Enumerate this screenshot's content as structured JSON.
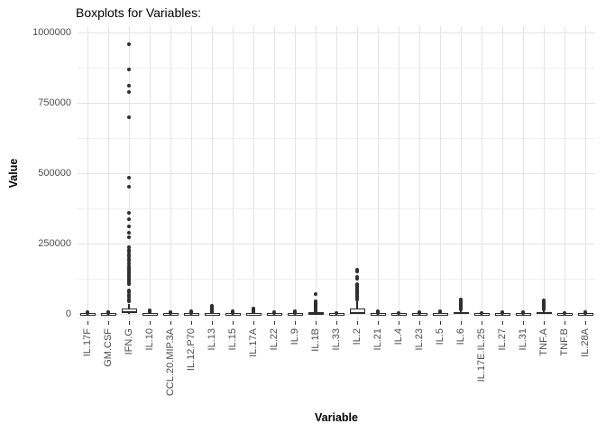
{
  "title": "Boxplots for Variables:",
  "axes": {
    "y_title": "Value",
    "x_title": "Variable"
  },
  "colors": {
    "background": "#ffffff",
    "box_stroke": "#2a2a2a",
    "box_fill": "#ffffff",
    "outlier": "#2f2f2f",
    "grid_major": "#e3e3e3",
    "grid_minor": "#f0f0f0",
    "tick_label": "#4d4d4d",
    "title_text": "#000000"
  },
  "chart_data": {
    "type": "boxplot",
    "title": "Boxplots for Variables:",
    "xlabel": "Variable",
    "ylabel": "Value",
    "ylim": [
      0,
      1000000
    ],
    "y_major_ticks": [
      0,
      250000,
      500000,
      750000,
      1000000
    ],
    "y_tick_labels": [
      "0",
      "250000",
      "500000",
      "750000",
      "1000000"
    ],
    "y_minor_ticks": [
      125000,
      375000,
      625000,
      875000
    ],
    "grid": "major+minor horizontal, major vertical per category",
    "legend": "none",
    "categories": [
      "IL.17F",
      "GM.CSF",
      "IFN.G",
      "IL.10",
      "CCL.20.MIP.3A",
      "IL.12.P70",
      "IL.13",
      "IL.15",
      "IL.17A",
      "IL.22",
      "IL.9",
      "IL.1B",
      "IL.33",
      "IL.2",
      "IL.21",
      "IL.4",
      "IL.23",
      "IL.5",
      "IL.6",
      "IL.17E.IL.25",
      "IL.27",
      "IL.31",
      "TNF.A",
      "TNF.B",
      "IL.28A"
    ],
    "boxes": [
      {
        "name": "IL.17F",
        "whisker_low": 0,
        "q1": 0,
        "median": 1000,
        "q3": 2600,
        "whisker_high": 5000,
        "outliers": [
          5000
        ]
      },
      {
        "name": "GM.CSF",
        "whisker_low": 0,
        "q1": 0,
        "median": 1000,
        "q3": 2600,
        "whisker_high": 5000,
        "outliers": [
          5000,
          7000
        ]
      },
      {
        "name": "IFN.G",
        "whisker_low": 0,
        "q1": 2000,
        "median": 8000,
        "q3": 20000,
        "whisker_high": 36000,
        "outliers": [
          45000,
          52000,
          60000,
          68000,
          76000,
          83000,
          106000,
          113000,
          120000,
          127000,
          134000,
          141000,
          148000,
          155000,
          162000,
          170000,
          180000,
          188000,
          196000,
          204000,
          212000,
          220000,
          228000,
          236000,
          272000,
          288000,
          312000,
          336000,
          360000,
          452000,
          485000,
          700000,
          788000,
          812000,
          868000,
          958000
        ]
      },
      {
        "name": "IL.10",
        "whisker_low": 0,
        "q1": 0,
        "median": 1000,
        "q3": 2600,
        "whisker_high": 5000,
        "outliers": [
          7000,
          10000,
          14000
        ]
      },
      {
        "name": "CCL.20.MIP.3A",
        "whisker_low": 0,
        "q1": 0,
        "median": 1000,
        "q3": 2600,
        "whisker_high": 5000,
        "outliers": [
          5000
        ]
      },
      {
        "name": "IL.12.P70",
        "whisker_low": 0,
        "q1": 0,
        "median": 1000,
        "q3": 2600,
        "whisker_high": 5000,
        "outliers": [
          5000,
          8000
        ]
      },
      {
        "name": "IL.13",
        "whisker_low": 0,
        "q1": 0,
        "median": 1000,
        "q3": 2600,
        "whisker_high": 5000,
        "outliers": [
          7000,
          11000,
          15000,
          19000,
          24000,
          29000
        ]
      },
      {
        "name": "IL.15",
        "whisker_low": 0,
        "q1": 0,
        "median": 1000,
        "q3": 2600,
        "whisker_high": 5000,
        "outliers": [
          5000,
          8000
        ]
      },
      {
        "name": "IL.17A",
        "whisker_low": 0,
        "q1": 0,
        "median": 1000,
        "q3": 2600,
        "whisker_high": 5000,
        "outliers": [
          7000,
          11000,
          15000,
          19000
        ]
      },
      {
        "name": "IL.22",
        "whisker_low": 0,
        "q1": 0,
        "median": 1000,
        "q3": 2600,
        "whisker_high": 5000,
        "outliers": [
          5000
        ]
      },
      {
        "name": "IL.9",
        "whisker_low": 0,
        "q1": 0,
        "median": 1000,
        "q3": 2600,
        "whisker_high": 5000,
        "outliers": [
          5000,
          8000
        ]
      },
      {
        "name": "IL.1B",
        "whisker_low": 0,
        "q1": 500,
        "median": 2000,
        "q3": 5500,
        "whisker_high": 9000,
        "outliers": [
          11000,
          15000,
          19000,
          23000,
          27000,
          31000,
          35000,
          39000,
          43000,
          70000
        ]
      },
      {
        "name": "IL.33",
        "whisker_low": 0,
        "q1": 0,
        "median": 1000,
        "q3": 2600,
        "whisker_high": 5000,
        "outliers": [
          4000
        ]
      },
      {
        "name": "IL.2",
        "whisker_low": 0,
        "q1": 1000,
        "median": 4000,
        "q3": 19000,
        "whisker_high": 48000,
        "outliers": [
          52000,
          57000,
          62000,
          67000,
          72000,
          77000,
          82000,
          87000,
          92000,
          97000,
          102000,
          106000,
          126000,
          132000,
          150000,
          156000
        ]
      },
      {
        "name": "IL.21",
        "whisker_low": 0,
        "q1": 0,
        "median": 1000,
        "q3": 2600,
        "whisker_high": 5000,
        "outliers": [
          5000,
          9000
        ]
      },
      {
        "name": "IL.4",
        "whisker_low": 0,
        "q1": 0,
        "median": 1000,
        "q3": 2600,
        "whisker_high": 5000,
        "outliers": [
          4000
        ]
      },
      {
        "name": "IL.23",
        "whisker_low": 0,
        "q1": 0,
        "median": 1000,
        "q3": 2600,
        "whisker_high": 5000,
        "outliers": [
          4000,
          7000
        ]
      },
      {
        "name": "IL.5",
        "whisker_low": 0,
        "q1": 0,
        "median": 1200,
        "q3": 3000,
        "whisker_high": 6000,
        "outliers": [
          6000,
          10000
        ]
      },
      {
        "name": "IL.6",
        "whisker_low": 0,
        "q1": 500,
        "median": 2500,
        "q3": 7000,
        "whisker_high": 13000,
        "outliers": [
          17000,
          21000,
          25000,
          29000,
          33000,
          37000,
          42000,
          47000,
          51000
        ]
      },
      {
        "name": "IL.17E.IL.25",
        "whisker_low": 0,
        "q1": 0,
        "median": 1000,
        "q3": 2600,
        "whisker_high": 5000,
        "outliers": [
          4000
        ]
      },
      {
        "name": "IL.27",
        "whisker_low": 0,
        "q1": 0,
        "median": 1000,
        "q3": 2600,
        "whisker_high": 5000,
        "outliers": [
          4000,
          7000
        ]
      },
      {
        "name": "IL.31",
        "whisker_low": 0,
        "q1": 0,
        "median": 1000,
        "q3": 2600,
        "whisker_high": 5000,
        "outliers": [
          4000,
          7000
        ]
      },
      {
        "name": "TNF.A",
        "whisker_low": 0,
        "q1": 500,
        "median": 2500,
        "q3": 6500,
        "whisker_high": 12000,
        "outliers": [
          15000,
          19000,
          23000,
          27000,
          31000,
          35000,
          39000,
          44000,
          48000
        ]
      },
      {
        "name": "TNF.B",
        "whisker_low": 0,
        "q1": 0,
        "median": 1000,
        "q3": 2600,
        "whisker_high": 5000,
        "outliers": [
          4000
        ]
      },
      {
        "name": "IL.28A",
        "whisker_low": 0,
        "q1": 0,
        "median": 1000,
        "q3": 2600,
        "whisker_high": 5000,
        "outliers": [
          4000,
          7000
        ]
      }
    ]
  }
}
